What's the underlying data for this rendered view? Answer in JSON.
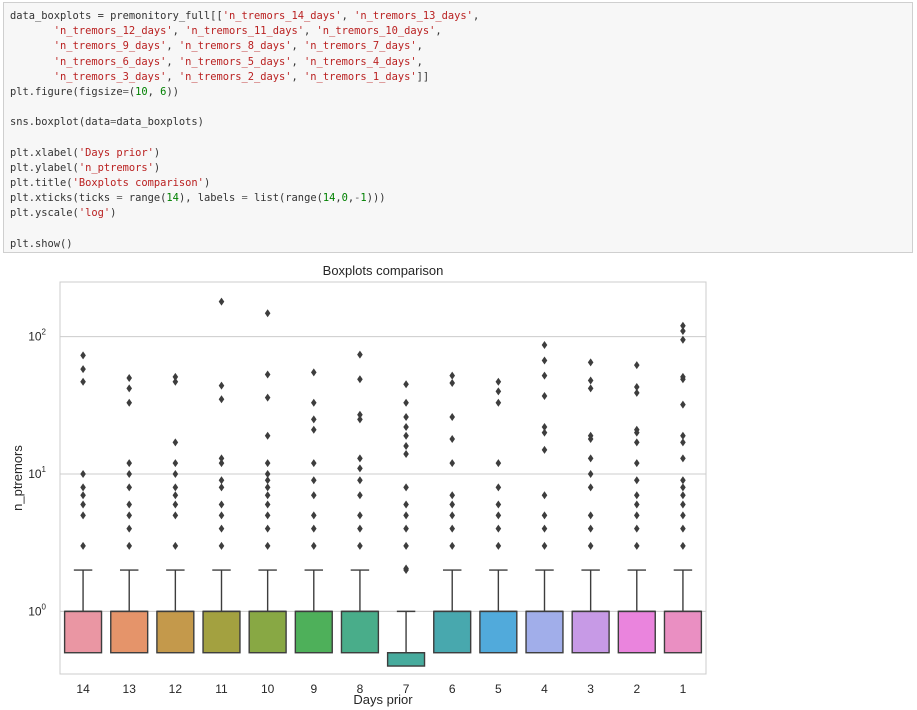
{
  "code_cell": {
    "lines": [
      [
        [
          "plain",
          "data_boxplots = premonitory_full[["
        ],
        [
          "str",
          "'n_tremors_14_days'"
        ],
        [
          "plain",
          ", "
        ],
        [
          "str",
          "'n_tremors_13_days'"
        ],
        [
          "plain",
          ","
        ]
      ],
      [
        [
          "plain",
          "       "
        ],
        [
          "str",
          "'n_tremors_12_days'"
        ],
        [
          "plain",
          ", "
        ],
        [
          "str",
          "'n_tremors_11_days'"
        ],
        [
          "plain",
          ", "
        ],
        [
          "str",
          "'n_tremors_10_days'"
        ],
        [
          "plain",
          ","
        ]
      ],
      [
        [
          "plain",
          "       "
        ],
        [
          "str",
          "'n_tremors_9_days'"
        ],
        [
          "plain",
          ", "
        ],
        [
          "str",
          "'n_tremors_8_days'"
        ],
        [
          "plain",
          ", "
        ],
        [
          "str",
          "'n_tremors_7_days'"
        ],
        [
          "plain",
          ","
        ]
      ],
      [
        [
          "plain",
          "       "
        ],
        [
          "str",
          "'n_tremors_6_days'"
        ],
        [
          "plain",
          ", "
        ],
        [
          "str",
          "'n_tremors_5_days'"
        ],
        [
          "plain",
          ", "
        ],
        [
          "str",
          "'n_tremors_4_days'"
        ],
        [
          "plain",
          ","
        ]
      ],
      [
        [
          "plain",
          "       "
        ],
        [
          "str",
          "'n_tremors_3_days'"
        ],
        [
          "plain",
          ", "
        ],
        [
          "str",
          "'n_tremors_2_days'"
        ],
        [
          "plain",
          ", "
        ],
        [
          "str",
          "'n_tremors_1_days'"
        ],
        [
          "plain",
          "]]"
        ]
      ],
      [
        [
          "plain",
          "plt.figure(figsize"
        ],
        [
          "op",
          "="
        ],
        [
          "plain",
          "("
        ],
        [
          "num",
          "10"
        ],
        [
          "plain",
          ", "
        ],
        [
          "num",
          "6"
        ],
        [
          "plain",
          "))"
        ]
      ],
      [
        [
          "plain",
          ""
        ]
      ],
      [
        [
          "plain",
          "sns.boxplot(data"
        ],
        [
          "op",
          "="
        ],
        [
          "plain",
          "data_boxplots)"
        ]
      ],
      [
        [
          "plain",
          ""
        ]
      ],
      [
        [
          "plain",
          "plt.xlabel("
        ],
        [
          "str",
          "'Days prior'"
        ],
        [
          "plain",
          ")"
        ]
      ],
      [
        [
          "plain",
          "plt.ylabel("
        ],
        [
          "str",
          "'n_ptremors'"
        ],
        [
          "plain",
          ")"
        ]
      ],
      [
        [
          "plain",
          "plt.title("
        ],
        [
          "str",
          "'Boxplots comparison'"
        ],
        [
          "plain",
          ")"
        ]
      ],
      [
        [
          "plain",
          "plt.xticks(ticks "
        ],
        [
          "op",
          "="
        ],
        [
          "plain",
          " range("
        ],
        [
          "num",
          "14"
        ],
        [
          "plain",
          "), labels "
        ],
        [
          "op",
          "="
        ],
        [
          "plain",
          " list(range("
        ],
        [
          "num",
          "14"
        ],
        [
          "plain",
          ","
        ],
        [
          "num",
          "0"
        ],
        [
          "plain",
          ","
        ],
        [
          "op",
          "-"
        ],
        [
          "num",
          "1"
        ],
        [
          "plain",
          ")))"
        ]
      ],
      [
        [
          "plain",
          "plt.yscale("
        ],
        [
          "str",
          "'log'"
        ],
        [
          "plain",
          ")"
        ]
      ],
      [
        [
          "plain",
          ""
        ]
      ],
      [
        [
          "plain",
          "plt.show()"
        ]
      ]
    ],
    "colors": {
      "str": "#ba2121",
      "num": "#008000",
      "op": "#666666",
      "plain": "#333333"
    }
  },
  "chart_data": {
    "type": "boxplot",
    "title": "Boxplots comparison",
    "xlabel": "Days prior",
    "ylabel": "n_ptremors",
    "yscale": "log",
    "ylim": [
      0.35,
      250
    ],
    "yticks": [
      {
        "base": "10",
        "exp": "0"
      },
      {
        "base": "10",
        "exp": "1"
      },
      {
        "base": "10",
        "exp": "2"
      }
    ],
    "ytick_values": [
      1,
      10,
      100
    ],
    "grid": true,
    "categories": [
      "14",
      "13",
      "12",
      "11",
      "10",
      "9",
      "8",
      "7",
      "6",
      "5",
      "4",
      "3",
      "2",
      "1"
    ],
    "boxes": [
      {
        "label": "14",
        "q1": 0.5,
        "q3": 1,
        "median": 1,
        "whisker_low": 0.5,
        "whisker_high": 2,
        "color": "#ea96a3",
        "fliers": [
          3,
          5,
          6,
          7,
          8,
          10,
          47,
          58,
          73
        ]
      },
      {
        "label": "13",
        "q1": 0.5,
        "q3": 1,
        "median": 1,
        "whisker_low": 0.5,
        "whisker_high": 2,
        "color": "#e5946a",
        "fliers": [
          3,
          4,
          5,
          6,
          8,
          10,
          12,
          33,
          42,
          50
        ]
      },
      {
        "label": "12",
        "q1": 0.5,
        "q3": 1,
        "median": 1,
        "whisker_low": 0.5,
        "whisker_high": 2,
        "color": "#c4994b",
        "fliers": [
          3,
          5,
          6,
          7,
          8,
          10,
          12,
          17,
          47,
          51
        ]
      },
      {
        "label": "11",
        "q1": 0.5,
        "q3": 1,
        "median": 1,
        "whisker_low": 0.5,
        "whisker_high": 2,
        "color": "#a3a140",
        "fliers": [
          3,
          4,
          5,
          6,
          8,
          9,
          12,
          13,
          35,
          44,
          180
        ]
      },
      {
        "label": "10",
        "q1": 0.5,
        "q3": 1,
        "median": 1,
        "whisker_low": 0.5,
        "whisker_high": 2,
        "color": "#88a844",
        "fliers": [
          3,
          4,
          5,
          6,
          7,
          8,
          9,
          10,
          12,
          19,
          36,
          53,
          148
        ]
      },
      {
        "label": "9",
        "q1": 0.5,
        "q3": 1,
        "median": 1,
        "whisker_low": 0.5,
        "whisker_high": 2,
        "color": "#4eb05a",
        "fliers": [
          3,
          4,
          5,
          7,
          9,
          12,
          21,
          25,
          33,
          55
        ]
      },
      {
        "label": "8",
        "q1": 0.5,
        "q3": 1,
        "median": 1,
        "whisker_low": 0.5,
        "whisker_high": 2,
        "color": "#49ad8a",
        "fliers": [
          3,
          4,
          5,
          7,
          9,
          11,
          13,
          25,
          27,
          49,
          74
        ]
      },
      {
        "label": "7",
        "q1": 0.4,
        "q3": 0.5,
        "median": 0.5,
        "whisker_low": 0.4,
        "whisker_high": 1,
        "color": "#47ab9d",
        "fliers": [
          2,
          2.05,
          3,
          4,
          5,
          6,
          8,
          14,
          16,
          19,
          22,
          26,
          33,
          45
        ]
      },
      {
        "label": "6",
        "q1": 0.5,
        "q3": 1,
        "median": 1,
        "whisker_low": 0.5,
        "whisker_high": 2,
        "color": "#48a8ae",
        "fliers": [
          3,
          4,
          5,
          6,
          7,
          12,
          18,
          26,
          46,
          52
        ]
      },
      {
        "label": "5",
        "q1": 0.5,
        "q3": 1,
        "median": 1,
        "whisker_low": 0.5,
        "whisker_high": 2,
        "color": "#51aadb",
        "fliers": [
          3,
          4,
          5,
          6,
          8,
          12,
          33,
          40,
          47
        ]
      },
      {
        "label": "4",
        "q1": 0.5,
        "q3": 1,
        "median": 1,
        "whisker_low": 0.5,
        "whisker_high": 2,
        "color": "#a1aeea",
        "fliers": [
          3,
          4,
          5,
          7,
          15,
          20,
          22,
          37,
          52,
          67,
          87
        ]
      },
      {
        "label": "3",
        "q1": 0.5,
        "q3": 1,
        "median": 1,
        "whisker_low": 0.5,
        "whisker_high": 2,
        "color": "#c79ae6",
        "fliers": [
          3,
          4,
          5,
          8,
          10,
          13,
          18,
          19,
          42,
          48,
          65
        ]
      },
      {
        "label": "2",
        "q1": 0.5,
        "q3": 1,
        "median": 1,
        "whisker_low": 0.5,
        "whisker_high": 2,
        "color": "#ea84dd",
        "fliers": [
          3,
          4,
          5,
          6,
          7,
          9,
          12,
          17,
          20,
          21,
          39,
          43,
          62
        ]
      },
      {
        "label": "1",
        "q1": 0.5,
        "q3": 1,
        "median": 1,
        "whisker_low": 0.5,
        "whisker_high": 2,
        "color": "#ea8fc2",
        "fliers": [
          3,
          4,
          5,
          6,
          7,
          8,
          9,
          13,
          17,
          19,
          32,
          49,
          51,
          95,
          110,
          120
        ]
      }
    ]
  }
}
